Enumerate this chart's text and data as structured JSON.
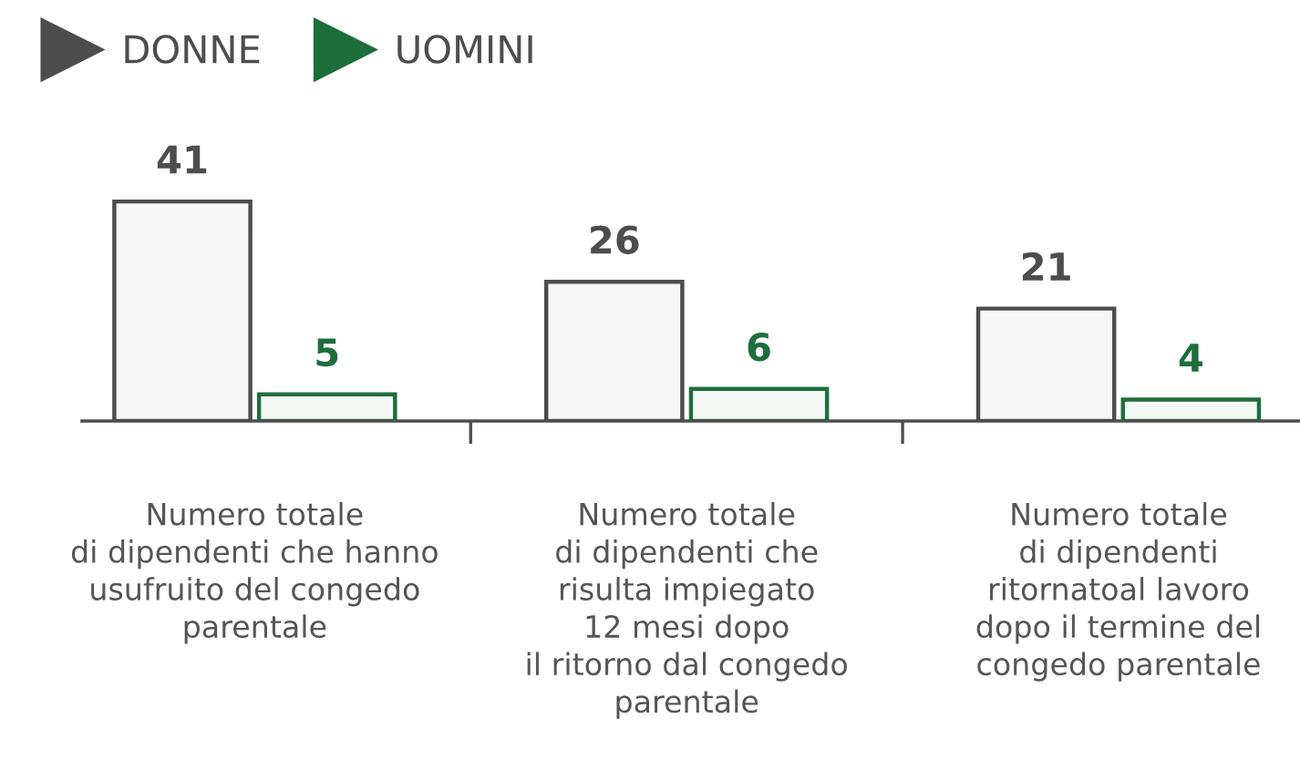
{
  "chart_data": {
    "type": "bar",
    "categories": [
      "Numero totale\ndi dipendenti che hanno\nusufruito del congedo\nparentale",
      "Numero totale\ndi dipendenti che\nrisulta impiegato\n12 mesi dopo\nil ritorno dal congedo\nparentale",
      "Numero totale\ndi dipendenti\nritornatoal lavoro\ndopo il termine del\ncongedo parentale"
    ],
    "series": [
      {
        "name": "DONNE",
        "color": "#4d4d4d",
        "values": [
          41,
          26,
          21
        ]
      },
      {
        "name": "UOMINI",
        "color": "#1e6e3c",
        "values": [
          5,
          6,
          4
        ]
      }
    ],
    "data_labels": true,
    "legend": "top left",
    "grid": false
  }
}
